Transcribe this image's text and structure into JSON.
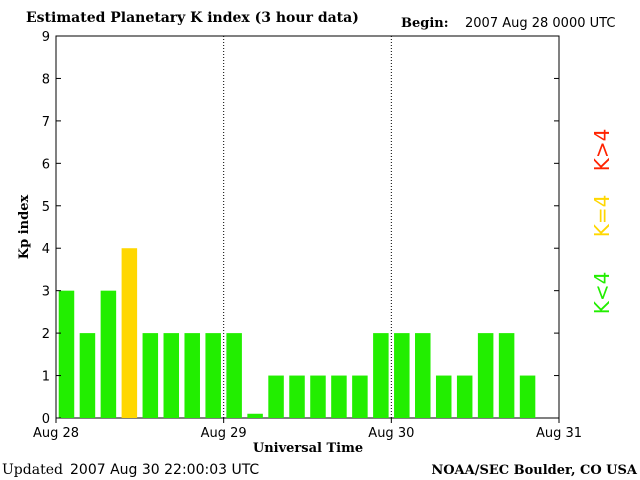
{
  "header": {
    "title": "Estimated Planetary K index (3 hour data)",
    "begin_label": "Begin:",
    "begin_value": "2007 Aug 28 0000 UTC"
  },
  "footer": {
    "updated_label": "Updated",
    "updated_value": "2007 Aug 30 22:00:03 UTC",
    "source": "NOAA/SEC Boulder, CO USA"
  },
  "legend": [
    {
      "text": "K>4",
      "color": "#ff2200"
    },
    {
      "text": "K=4",
      "color": "#ffd700"
    },
    {
      "text": "K<4",
      "color": "#22ee00"
    }
  ],
  "chart_data": {
    "type": "bar",
    "title": "Estimated Planetary K index (3 hour data)",
    "xlabel": "Universal Time",
    "ylabel": "Kp index",
    "ylim": [
      0,
      9
    ],
    "yticks": [
      "0",
      "1",
      "2",
      "3",
      "4",
      "5",
      "6",
      "7",
      "8",
      "9"
    ],
    "xticks": [
      "Aug 28",
      "Aug 29",
      "Aug 30",
      "Aug 31"
    ],
    "bins_per_day": 8,
    "day_separators": "dotted",
    "colors": {
      "below_4": "#22ee00",
      "equal_4": "#ffd700",
      "above_4": "#ff2200"
    },
    "values": [
      3,
      2,
      3,
      4,
      2,
      2,
      2,
      2,
      2,
      0.1,
      1,
      1,
      1,
      1,
      1,
      2,
      2,
      2,
      1,
      1,
      2,
      2,
      1
    ]
  }
}
